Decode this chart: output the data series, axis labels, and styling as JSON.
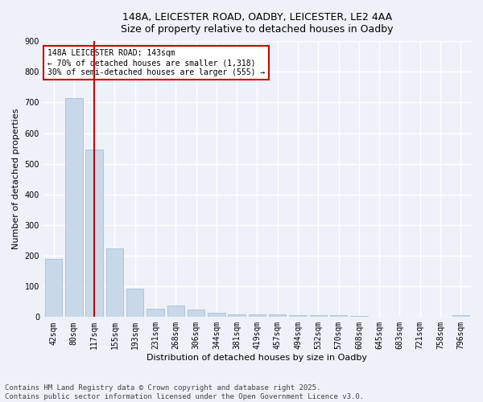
{
  "title_line1": "148A, LEICESTER ROAD, OADBY, LEICESTER, LE2 4AA",
  "title_line2": "Size of property relative to detached houses in Oadby",
  "xlabel": "Distribution of detached houses by size in Oadby",
  "ylabel": "Number of detached properties",
  "categories": [
    "42sqm",
    "80sqm",
    "117sqm",
    "155sqm",
    "193sqm",
    "231sqm",
    "268sqm",
    "306sqm",
    "344sqm",
    "381sqm",
    "419sqm",
    "457sqm",
    "494sqm",
    "532sqm",
    "570sqm",
    "608sqm",
    "645sqm",
    "683sqm",
    "721sqm",
    "758sqm",
    "796sqm"
  ],
  "values": [
    190,
    713,
    547,
    225,
    92,
    27,
    38,
    25,
    13,
    10,
    10,
    10,
    7,
    6,
    5,
    4,
    0,
    0,
    0,
    0,
    7
  ],
  "bar_color": "#c8d8e8",
  "bar_edgecolor": "#a0b8d0",
  "vline_x": 2.0,
  "vline_color": "#cc0000",
  "annotation_text": "148A LEICESTER ROAD: 143sqm\n← 70% of detached houses are smaller (1,318)\n30% of semi-detached houses are larger (555) →",
  "annotation_box_color": "#ffffff",
  "annotation_box_edgecolor": "#cc0000",
  "ylim": [
    0,
    900
  ],
  "yticks": [
    0,
    100,
    200,
    300,
    400,
    500,
    600,
    700,
    800,
    900
  ],
  "background_color": "#eef2f8",
  "grid_color": "#ffffff",
  "footer_line1": "Contains HM Land Registry data © Crown copyright and database right 2025.",
  "footer_line2": "Contains public sector information licensed under the Open Government Licence v3.0.",
  "title_fontsize": 9,
  "axis_label_fontsize": 8,
  "tick_fontsize": 7,
  "annotation_fontsize": 7,
  "footer_fontsize": 6.5
}
